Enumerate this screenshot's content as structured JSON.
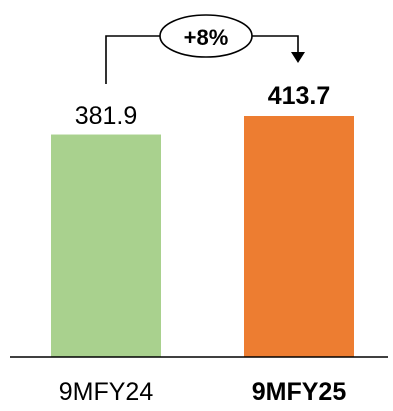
{
  "chart_data": {
    "type": "bar",
    "categories": [
      "9MFY24",
      "9MFY25"
    ],
    "values": [
      381.9,
      413.7
    ],
    "value_labels": [
      "381.9",
      "413.7"
    ],
    "bar_colors": [
      "#a9d18e",
      "#ed7d31"
    ],
    "bold_category_index": 1,
    "ylim": [
      0,
      413.7
    ],
    "annotation": {
      "text": "+8%",
      "from_category": "9MFY24",
      "to_category": "9MFY25"
    },
    "legend": "none",
    "grid": false
  }
}
